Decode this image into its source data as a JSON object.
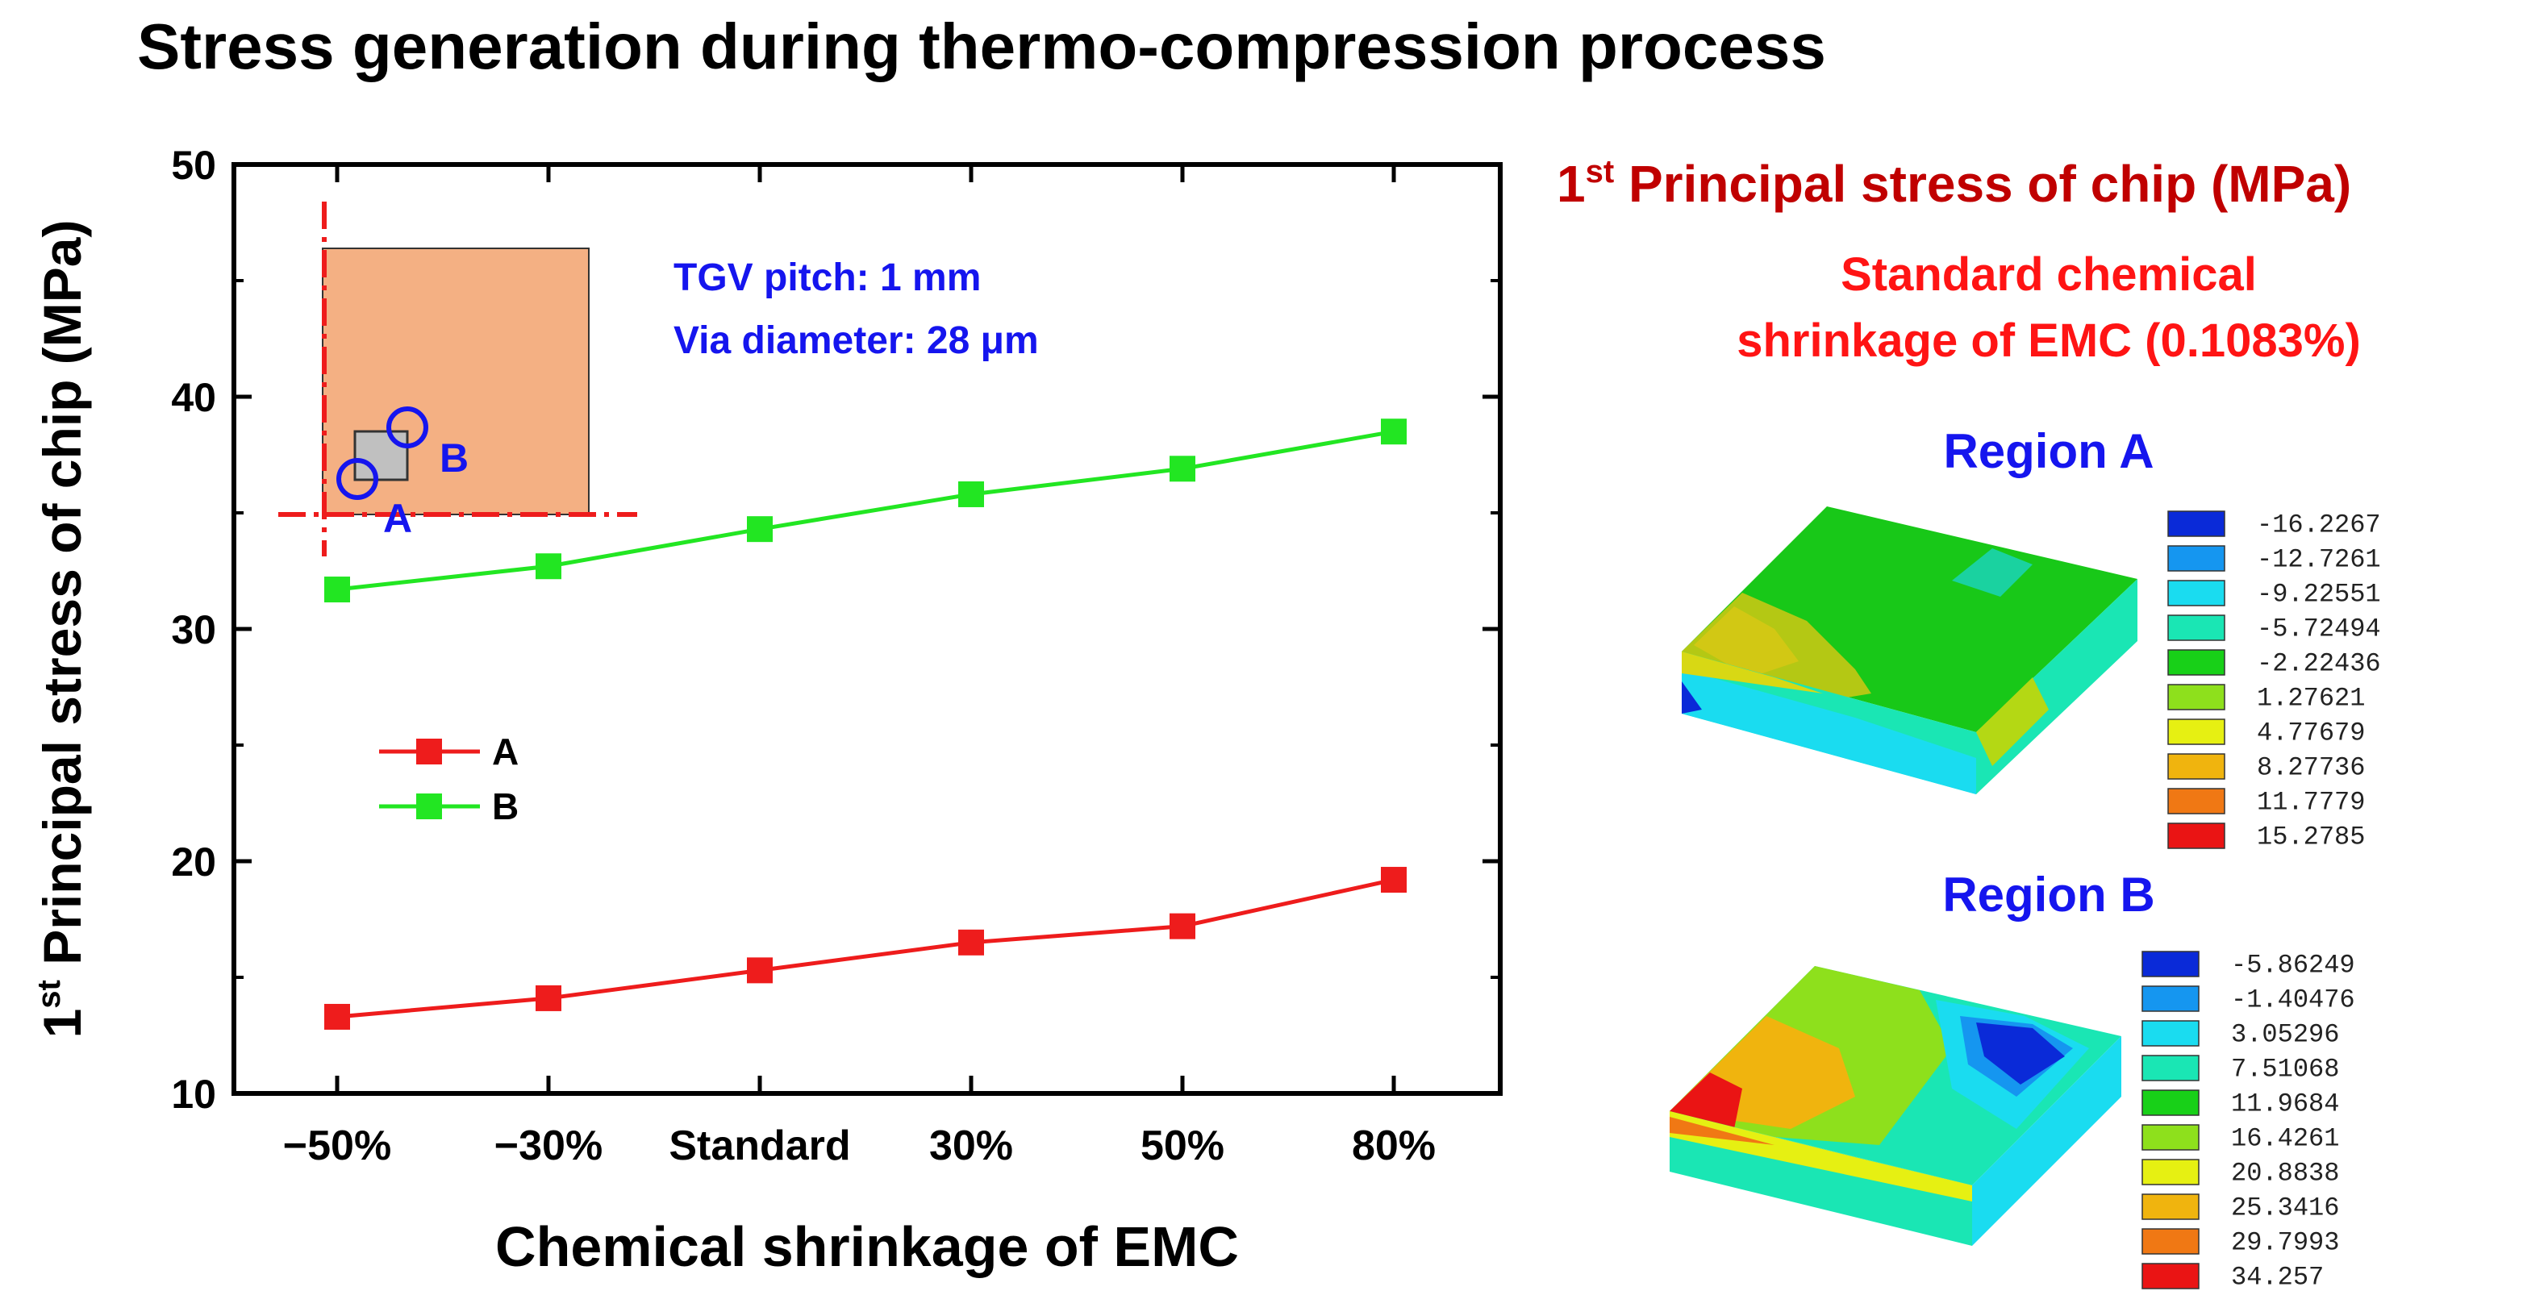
{
  "title": "Stress generation during thermo-compression process",
  "chart_data": {
    "type": "line",
    "categories": [
      "−50%",
      "−30%",
      "Standard",
      "30%",
      "50%",
      "80%"
    ],
    "series": [
      {
        "name": "A",
        "color": "#ee1c1c",
        "values": [
          13.3,
          14.1,
          15.3,
          16.5,
          17.2,
          19.2
        ]
      },
      {
        "name": "B",
        "color": "#22e622",
        "values": [
          31.7,
          32.7,
          34.3,
          35.8,
          36.9,
          38.5
        ]
      }
    ],
    "ylabel_prefix": "1",
    "ylabel_sup": "st",
    "ylabel_main": " Principal stress of chip (MPa)",
    "xlabel": "Chemical shrinkage of EMC",
    "ylim": [
      10,
      50
    ],
    "yticks": [
      "10",
      "20",
      "30",
      "40",
      "50"
    ],
    "legend": [
      "A",
      "B"
    ],
    "annotations": [
      "TGV pitch: 1 mm",
      "Via diameter: 28 μm"
    ],
    "inset_labels": [
      "A",
      "B"
    ]
  },
  "right_panel": {
    "title_prefix": "1",
    "title_sup": "st",
    "title_main": " Principal stress of chip (MPa)",
    "subtitle_line1": "Standard chemical",
    "subtitle_line2": "shrinkage of EMC (0.1083%)",
    "region_a": {
      "label": "Region A",
      "legend_values": [
        "-16.2267",
        "-12.7261",
        "-9.22551",
        "-5.72494",
        "-2.22436",
        "1.27621",
        "4.77679",
        "8.27736",
        "11.7779",
        "15.2785"
      ]
    },
    "region_b": {
      "label": "Region B",
      "legend_values": [
        "-5.86249",
        "-1.40476",
        "3.05296",
        "7.51068",
        "11.9684",
        "16.4261",
        "20.8838",
        "25.3416",
        "29.7993",
        "34.257"
      ]
    },
    "colorbar": [
      "#0a2ad8",
      "#1596f0",
      "#1adcf0",
      "#1ae6b4",
      "#18d018",
      "#8ee01c",
      "#e6f012",
      "#f0b40e",
      "#f07814",
      "#ea1414"
    ]
  }
}
